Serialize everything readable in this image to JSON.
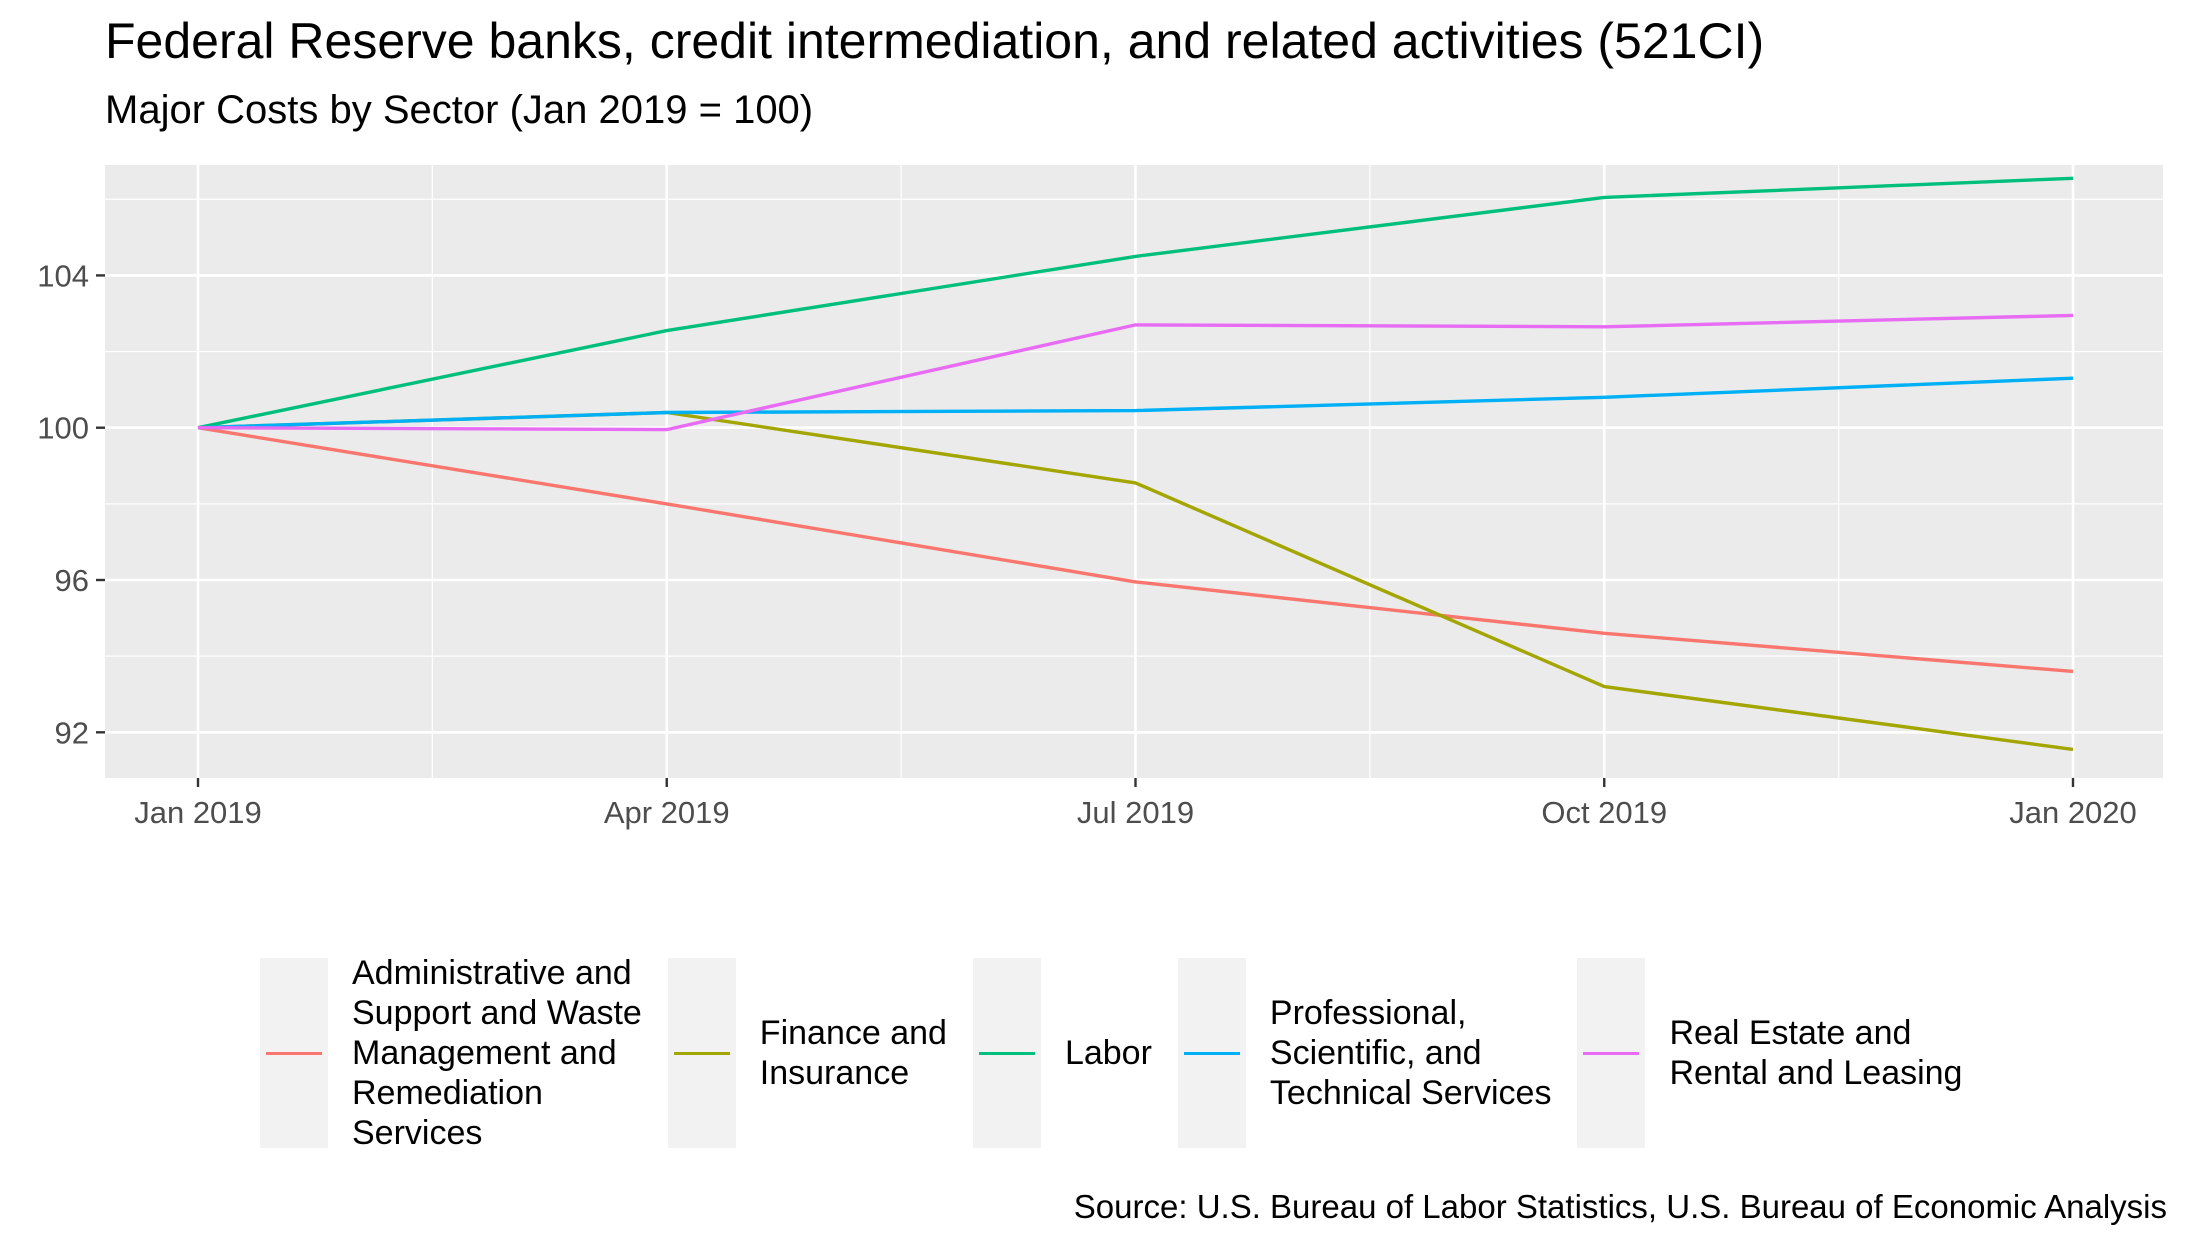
{
  "title": "Federal Reserve banks, credit intermediation, and related activities (521CI)",
  "subtitle": "Major Costs by Sector (Jan 2019 = 100)",
  "source": "Source: U.S. Bureau of Labor Statistics, U.S. Bureau of Economic Analysis",
  "chart_data": {
    "type": "line",
    "x": [
      "Jan 2019",
      "Apr 2019",
      "Jul 2019",
      "Oct 2019",
      "Jan 2020"
    ],
    "x_ticks": [
      "Jan 2019",
      "Apr 2019",
      "Jul 2019",
      "Oct 2019",
      "Jan 2020"
    ],
    "y_ticks": [
      92,
      96,
      100,
      104
    ],
    "ylim": [
      90.8,
      106.9
    ],
    "grid": true,
    "legend_position": "bottom",
    "series": [
      {
        "name": "Administrative and Support and Waste Management and Remediation Services",
        "legend_lines": [
          "Administrative and",
          "Support and Waste",
          "Management and",
          "Remediation",
          "Services"
        ],
        "color": "#F8766D",
        "values": [
          100.0,
          98.0,
          95.95,
          94.6,
          93.6
        ]
      },
      {
        "name": "Finance and Insurance",
        "legend_lines": [
          "Finance and",
          "Insurance"
        ],
        "color": "#A3A500",
        "values": [
          100.0,
          100.4,
          98.55,
          93.2,
          91.55
        ]
      },
      {
        "name": "Labor",
        "legend_lines": [
          "Labor"
        ],
        "color": "#00BF7D",
        "values": [
          100.0,
          102.55,
          104.5,
          106.05,
          106.55
        ]
      },
      {
        "name": "Professional, Scientific, and Technical Services",
        "legend_lines": [
          "Professional,",
          "Scientific, and",
          "Technical Services"
        ],
        "color": "#00B0F6",
        "values": [
          100.0,
          100.4,
          100.45,
          100.8,
          101.3
        ]
      },
      {
        "name": "Real Estate and Rental and Leasing",
        "legend_lines": [
          "Real Estate and",
          "Rental and Leasing"
        ],
        "color": "#E76BF3",
        "values": [
          100.0,
          99.95,
          102.7,
          102.65,
          102.95
        ]
      }
    ]
  }
}
